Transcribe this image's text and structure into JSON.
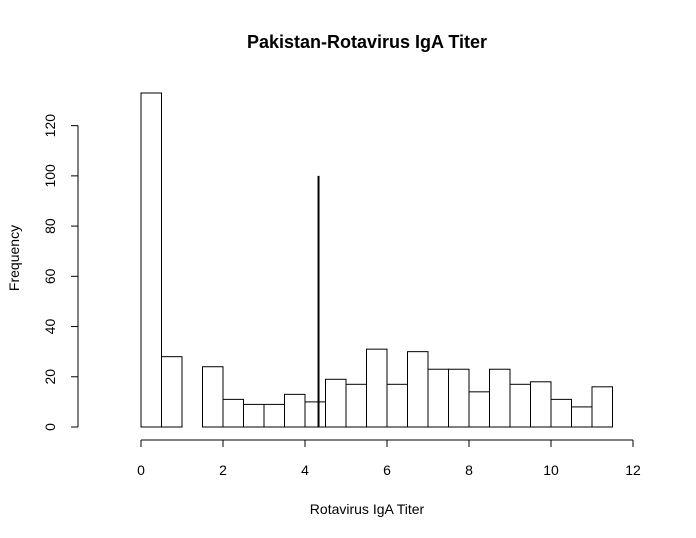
{
  "chart_data": {
    "type": "histogram",
    "title": "Pakistan-Rotavirus IgA Titer",
    "xlabel": "Rotavirus IgA Titer",
    "ylabel": "Frequency",
    "bin_width": 0.5,
    "bins": [
      {
        "x0": 0.0,
        "x1": 0.5,
        "count": 133
      },
      {
        "x0": 0.5,
        "x1": 1.0,
        "count": 28
      },
      {
        "x0": 1.0,
        "x1": 1.5,
        "count": 0
      },
      {
        "x0": 1.5,
        "x1": 2.0,
        "count": 24
      },
      {
        "x0": 2.0,
        "x1": 2.5,
        "count": 11
      },
      {
        "x0": 2.5,
        "x1": 3.0,
        "count": 9
      },
      {
        "x0": 3.0,
        "x1": 3.5,
        "count": 9
      },
      {
        "x0": 3.5,
        "x1": 4.0,
        "count": 13
      },
      {
        "x0": 4.0,
        "x1": 4.5,
        "count": 10
      },
      {
        "x0": 4.5,
        "x1": 5.0,
        "count": 19
      },
      {
        "x0": 5.0,
        "x1": 5.5,
        "count": 17
      },
      {
        "x0": 5.5,
        "x1": 6.0,
        "count": 31
      },
      {
        "x0": 6.0,
        "x1": 6.5,
        "count": 17
      },
      {
        "x0": 6.5,
        "x1": 7.0,
        "count": 30
      },
      {
        "x0": 7.0,
        "x1": 7.5,
        "count": 23
      },
      {
        "x0": 7.5,
        "x1": 8.0,
        "count": 23
      },
      {
        "x0": 8.0,
        "x1": 8.5,
        "count": 14
      },
      {
        "x0": 8.5,
        "x1": 9.0,
        "count": 23
      },
      {
        "x0": 9.0,
        "x1": 9.5,
        "count": 17
      },
      {
        "x0": 9.5,
        "x1": 10.0,
        "count": 18
      },
      {
        "x0": 10.0,
        "x1": 10.5,
        "count": 11
      },
      {
        "x0": 10.5,
        "x1": 11.0,
        "count": 8
      },
      {
        "x0": 11.0,
        "x1": 11.5,
        "count": 16
      }
    ],
    "reference_line": {
      "x": 4.33,
      "y0": 0,
      "y1": 100
    },
    "xlim": [
      0,
      12
    ],
    "ylim": [
      0,
      133
    ],
    "xticks": [
      0,
      2,
      4,
      6,
      8,
      10,
      12
    ],
    "xtick_labels": [
      "0",
      "2",
      "4",
      "6",
      "8",
      "10",
      "12"
    ],
    "yticks": [
      0,
      20,
      40,
      60,
      80,
      100,
      120
    ],
    "ytick_labels": [
      "0",
      "20",
      "40",
      "60",
      "80",
      "100",
      "120"
    ],
    "grid": false,
    "legend": "none"
  }
}
